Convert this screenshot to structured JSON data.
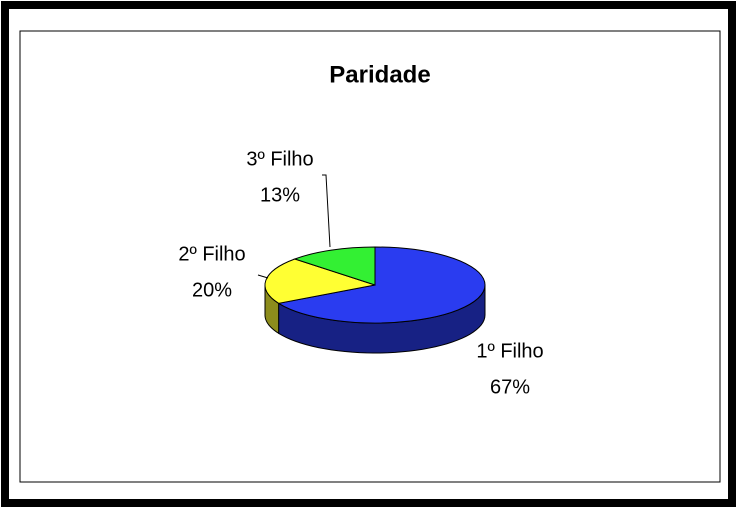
{
  "chart_data": {
    "type": "pie",
    "title": "Paridade",
    "categories": [
      "1º Filho",
      "2º Filho",
      "3º Filho"
    ],
    "values": [
      67,
      20,
      13
    ],
    "value_labels": [
      "67%",
      "20%",
      "13%"
    ],
    "colors": [
      "#2a3cf0",
      "#ffff33",
      "#33f033"
    ]
  }
}
